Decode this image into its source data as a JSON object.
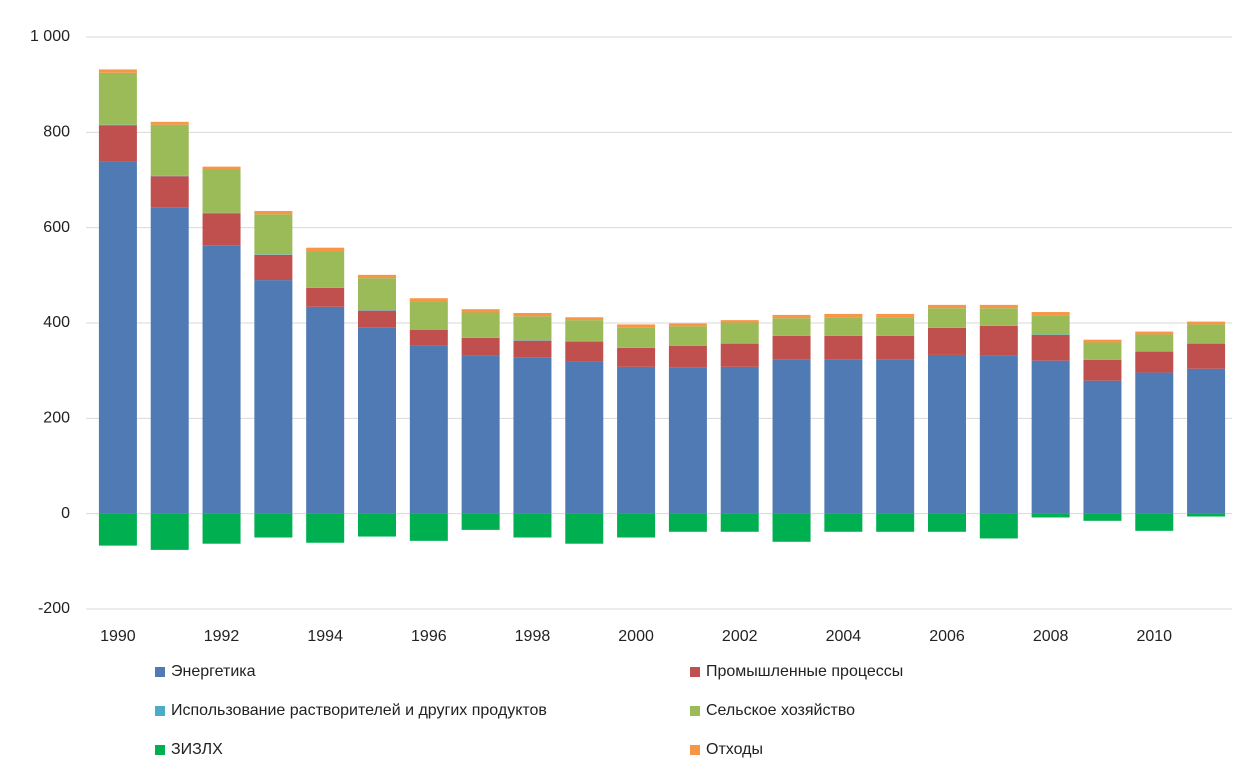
{
  "chart_data": {
    "type": "bar",
    "stacked": true,
    "categories": [
      "1990",
      null,
      "1992",
      null,
      "1994",
      null,
      "1996",
      null,
      "1998",
      null,
      "2000",
      null,
      "2002",
      null,
      "2004",
      null,
      "2006",
      null,
      "2008",
      null,
      "2010",
      null
    ],
    "series": [
      {
        "name": "Энергетика",
        "color": "#4f7ab3",
        "values": [
          738,
          643,
          562,
          490,
          434,
          390,
          352,
          331,
          327,
          319,
          308,
          306,
          308,
          323,
          323,
          323,
          333,
          331,
          321,
          279,
          296,
          304
        ]
      },
      {
        "name": "Промышленные процессы",
        "color": "#c0504d",
        "values": [
          77,
          65,
          68,
          53,
          40,
          36,
          34,
          38,
          36,
          42,
          40,
          46,
          48,
          50,
          50,
          50,
          57,
          63,
          54,
          44,
          44,
          52
        ]
      },
      {
        "name": "Использование растворителей и других продуктов",
        "color": "#4bacc6",
        "values": [
          1,
          1,
          1,
          1,
          1,
          1,
          1,
          1,
          1,
          1,
          1,
          1,
          1,
          1,
          1,
          1,
          1,
          1,
          1,
          1,
          1,
          1
        ]
      },
      {
        "name": "Сельское хозяйство",
        "color": "#9bbb59",
        "values": [
          109,
          107,
          91,
          84,
          75,
          67,
          58,
          52,
          50,
          44,
          42,
          40,
          44,
          36,
          38,
          38,
          40,
          36,
          40,
          35,
          35,
          40
        ]
      },
      {
        "name": "ЗИЗЛХ",
        "color": "#00b050",
        "values": [
          -67,
          -76,
          -63,
          -50,
          -61,
          -48,
          -57,
          -34,
          -50,
          -63,
          -50,
          -38,
          -38,
          -59,
          -38,
          -38,
          -38,
          -52,
          -8,
          -15,
          -36,
          -6
        ]
      },
      {
        "name": "Отходы",
        "color": "#f79646",
        "values": [
          7,
          6,
          6,
          7,
          8,
          7,
          7,
          7,
          7,
          6,
          6,
          6,
          5,
          7,
          7,
          7,
          7,
          7,
          7,
          6,
          6,
          6
        ]
      }
    ],
    "ylim": [
      -200,
      1000
    ],
    "yticks": [
      -200,
      0,
      200,
      400,
      600,
      800,
      {
        "value": 1000,
        "label": "1 000"
      }
    ],
    "grid": true
  }
}
